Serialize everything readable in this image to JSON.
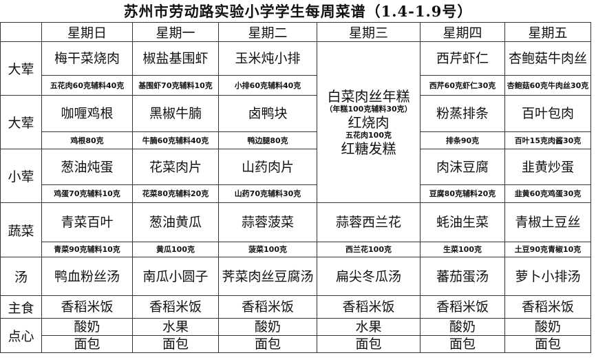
{
  "title": "苏州市劳动路实验小学学生每周菜谱（1.4-1.9号）",
  "days": [
    "星期日",
    "星期一",
    "星期二",
    "星期三",
    "星期四",
    "星期五"
  ],
  "categories": [
    {
      "label": "大荤",
      "items": [
        {
          "dish": "梅干菜烧肉",
          "detail": "五花肉60克辅料40克"
        },
        {
          "dish": "椒盐基围虾",
          "detail": "基围虾70克辅料10克"
        },
        {
          "dish": "玉米炖小排",
          "detail": "小排60克辅料40克"
        },
        null,
        {
          "dish": "西芹虾仁",
          "detail": "西芹60克虾仁30克"
        },
        {
          "dish": "杏鲍菇牛肉丝",
          "detail": "杏鲍菇60克牛肉丝30克"
        }
      ]
    },
    {
      "label": "大荤",
      "items": [
        {
          "dish": "咖喱鸡根",
          "detail": "鸡根80克"
        },
        {
          "dish": "黑椒牛腩",
          "detail": "牛腩60克辅料40克"
        },
        {
          "dish": "卤鸭块",
          "detail": "鸭边腿80克"
        },
        null,
        {
          "dish": "粉蒸排条",
          "detail": "排条90克"
        },
        {
          "dish": "百叶包肉",
          "detail": "百叶15克肉酱30克"
        }
      ]
    },
    {
      "label": "小荤",
      "items": [
        {
          "dish": "葱油炖蛋",
          "detail": "鸡蛋70克辅料10克"
        },
        {
          "dish": "花菜肉片",
          "detail": "花菜80克辅料20克"
        },
        {
          "dish": "山药肉片",
          "detail": "山药70克辅料30克"
        },
        null,
        {
          "dish": "肉沫豆腐",
          "detail": "豆腐80克辅料20克"
        },
        {
          "dish": "韭黄炒蛋",
          "detail": "韭黄60克鸡蛋30克"
        }
      ]
    },
    {
      "label": "蔬菜",
      "items": [
        {
          "dish": "青菜百叶",
          "detail": "青菜90克辅料10克"
        },
        {
          "dish": "葱油黄瓜",
          "detail": "黄瓜100克"
        },
        {
          "dish": "蒜蓉菠菜",
          "detail": "菠菜100克"
        },
        {
          "dish": "蒜蓉西兰花",
          "detail": "西兰花100克"
        },
        {
          "dish": "蚝油生菜",
          "detail": "生菜100克"
        },
        {
          "dish": "青椒土豆丝",
          "detail": "土豆90克青椒10克"
        }
      ]
    }
  ],
  "wednesday_combined": [
    {
      "text": "白菜肉丝年糕",
      "size": "big"
    },
    {
      "text": "（年糕100克辅料30克）",
      "size": "sm"
    },
    {
      "text": "红烧肉",
      "size": "big"
    },
    {
      "text": "五花肉100克",
      "size": "sm"
    },
    {
      "text": "红糖发糕",
      "size": "big"
    }
  ],
  "soup": {
    "label": "汤",
    "items": [
      "鸭血粉丝汤",
      "南瓜小圆子",
      "荠菜肉丝豆腐汤",
      "扁尖冬瓜汤",
      "蕃茄蛋汤",
      "萝卜小排汤"
    ]
  },
  "staple": {
    "label": "主食",
    "items": [
      "香稻米饭",
      "香稻米饭",
      "香稻米饭",
      "香稻米饭",
      "香稻米饭",
      "香稻米饭"
    ]
  },
  "snack": {
    "label": "点心",
    "line1": [
      "酸奶",
      "水果",
      "酸奶",
      "水果",
      "酸奶",
      "酸奶"
    ],
    "line2": [
      "面包",
      "面包",
      "面包",
      "面包",
      "面包",
      "面包"
    ]
  }
}
